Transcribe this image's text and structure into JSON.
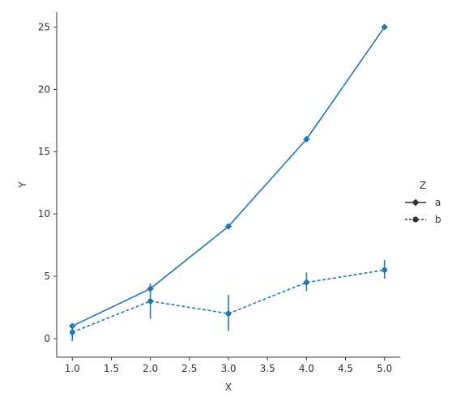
{
  "chart_data": {
    "type": "line",
    "xlabel": "X",
    "ylabel": "Y",
    "xlim": [
      0.8,
      5.2
    ],
    "ylim": [
      -1.5,
      26.2
    ],
    "xticks": [
      1.0,
      1.5,
      2.0,
      2.5,
      3.0,
      3.5,
      4.0,
      4.5,
      5.0
    ],
    "yticks": [
      0,
      5,
      10,
      15,
      20,
      25
    ],
    "grid": false,
    "legend": {
      "title": "Z",
      "placement": "right"
    },
    "series": [
      {
        "name": "a",
        "marker": "diamond",
        "linestyle": "solid",
        "x": [
          1,
          2,
          3,
          4,
          5
        ],
        "y": [
          1,
          4,
          9,
          16,
          25
        ],
        "err": [
          [
            1,
            1
          ],
          [
            3.6,
            4.4
          ],
          [
            9,
            9
          ],
          [
            16,
            16
          ],
          [
            25,
            25
          ]
        ]
      },
      {
        "name": "b",
        "marker": "circle",
        "linestyle": "dotted",
        "x": [
          1,
          2,
          3,
          4,
          5
        ],
        "y": [
          0.5,
          3,
          2,
          4.5,
          5.5
        ],
        "err": [
          [
            -0.2,
            1.0
          ],
          [
            1.6,
            4.4
          ],
          [
            0.6,
            3.5
          ],
          [
            3.8,
            5.3
          ],
          [
            4.8,
            6.3
          ]
        ]
      }
    ],
    "colors": {
      "line": "#1f77b4",
      "axis": "#333333",
      "legend_marker": "#333333"
    }
  }
}
